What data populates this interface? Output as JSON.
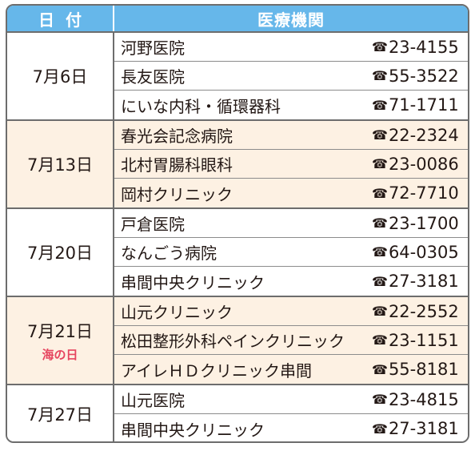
{
  "header": {
    "date": "日付",
    "institution": "医療機関"
  },
  "groups": [
    {
      "date": "7月6日",
      "holiday": "",
      "rows": [
        {
          "name": "河野医院",
          "tel": "23-4155"
        },
        {
          "name": "長友医院",
          "tel": "55-3522"
        },
        {
          "name": "にいな内科・循環器科",
          "tel": "71-1711"
        }
      ]
    },
    {
      "date": "7月13日",
      "holiday": "",
      "rows": [
        {
          "name": "春光会記念病院",
          "tel": "22-2324"
        },
        {
          "name": "北村胃腸科眼科",
          "tel": "23-0086"
        },
        {
          "name": "岡村クリニック",
          "tel": "72-7710"
        }
      ]
    },
    {
      "date": "7月20日",
      "holiday": "",
      "rows": [
        {
          "name": "戸倉医院",
          "tel": "23-1700"
        },
        {
          "name": "なんごう病院",
          "tel": "64-0305"
        },
        {
          "name": "串間中央クリニック",
          "tel": "27-3181"
        }
      ]
    },
    {
      "date": "7月21日",
      "holiday": "海の日",
      "rows": [
        {
          "name": "山元クリニック",
          "tel": "22-2552"
        },
        {
          "name": "松田整形外科ペインクリニック",
          "tel": "23-1151"
        },
        {
          "name": "アイレＨＤクリニック串間",
          "tel": "55-8181"
        }
      ]
    },
    {
      "date": "7月27日",
      "holiday": "",
      "rows": [
        {
          "name": "山元医院",
          "tel": "23-4815"
        },
        {
          "name": "串間中央クリニック",
          "tel": "27-3181"
        }
      ]
    }
  ],
  "icons": {
    "tel": "telephone-icon"
  },
  "colors": {
    "header_bg": "#66b7ea",
    "alt_row_bg": "#fdf1e3",
    "holiday": "#e6455f"
  }
}
